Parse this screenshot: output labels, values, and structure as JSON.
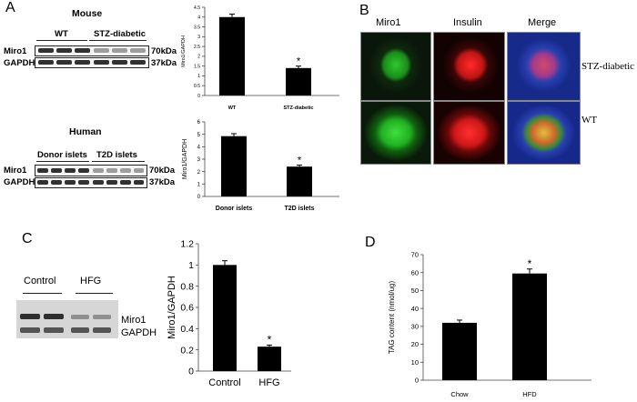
{
  "panels": {
    "A": {
      "label": "A",
      "mouse_blot": {
        "title": "Mouse",
        "groups": [
          "WT",
          "STZ-diabetic"
        ],
        "rows": [
          "Miro1",
          "GAPDH"
        ],
        "sizes": [
          "70kDa",
          "37kDa"
        ]
      },
      "human_blot": {
        "title": "Human",
        "groups": [
          "Donor islets",
          "T2D islets"
        ],
        "rows": [
          "Miro1",
          "GAPDH"
        ],
        "sizes": [
          "70kDa",
          "37kDa"
        ]
      }
    },
    "B": {
      "label": "B",
      "columns": [
        "Miro1",
        "Insulin",
        "Merge"
      ],
      "rows": [
        "STZ-diabetic",
        "WT"
      ],
      "colors": {
        "green": "#1fa01f",
        "red": "#e01a1a",
        "blue": "#1c3fb0",
        "dark": "#0a0a0a"
      }
    },
    "C": {
      "label": "C",
      "blot": {
        "groups": [
          "Control",
          "HFG"
        ],
        "rows": [
          "Miro1",
          "GAPDH"
        ]
      }
    },
    "D": {
      "label": "D"
    }
  },
  "chart_data": [
    {
      "id": "A-mouse",
      "type": "bar",
      "categories": [
        "WT",
        "STZ-diabetic"
      ],
      "values": [
        4.0,
        1.4
      ],
      "errors": [
        0.15,
        0.1
      ],
      "ylabel": "Miro1/GAPDH",
      "ylim": [
        0,
        4.5
      ],
      "yticks": [
        "0",
        "0.5",
        "1",
        "1.5",
        "2",
        "2.5",
        "3",
        "3.5",
        "4",
        "4.5"
      ],
      "significance": [
        "",
        "*"
      ]
    },
    {
      "id": "A-human",
      "type": "bar",
      "categories": [
        "Donor islets",
        "T2D islets"
      ],
      "values": [
        4.85,
        2.4
      ],
      "errors": [
        0.2,
        0.12
      ],
      "ylabel": "Miro1/GAPDH",
      "ylim": [
        0,
        6
      ],
      "yticks": [
        "0",
        "1",
        "2",
        "3",
        "4",
        "5",
        "6"
      ],
      "significance": [
        "",
        "*"
      ]
    },
    {
      "id": "C",
      "type": "bar",
      "categories": [
        "Control",
        "HFG"
      ],
      "values": [
        1.0,
        0.23
      ],
      "errors": [
        0.04,
        0.015
      ],
      "ylabel": "Miro1/GAPDH",
      "ylim": [
        0,
        1.2
      ],
      "yticks": [
        "0",
        "0.2",
        "0.4",
        "0.6",
        "0.8",
        "1",
        "1.2"
      ],
      "significance": [
        "",
        "*"
      ]
    },
    {
      "id": "D",
      "type": "bar",
      "categories": [
        "Chow",
        "HFD"
      ],
      "values": [
        32,
        59.5
      ],
      "errors": [
        1.5,
        2.5
      ],
      "ylabel": "TAG content (nmol/ug)",
      "ylim": [
        0,
        70
      ],
      "yticks": [
        "0",
        "10",
        "20",
        "30",
        "40",
        "50",
        "60",
        "70"
      ],
      "significance": [
        "",
        "*"
      ]
    }
  ]
}
